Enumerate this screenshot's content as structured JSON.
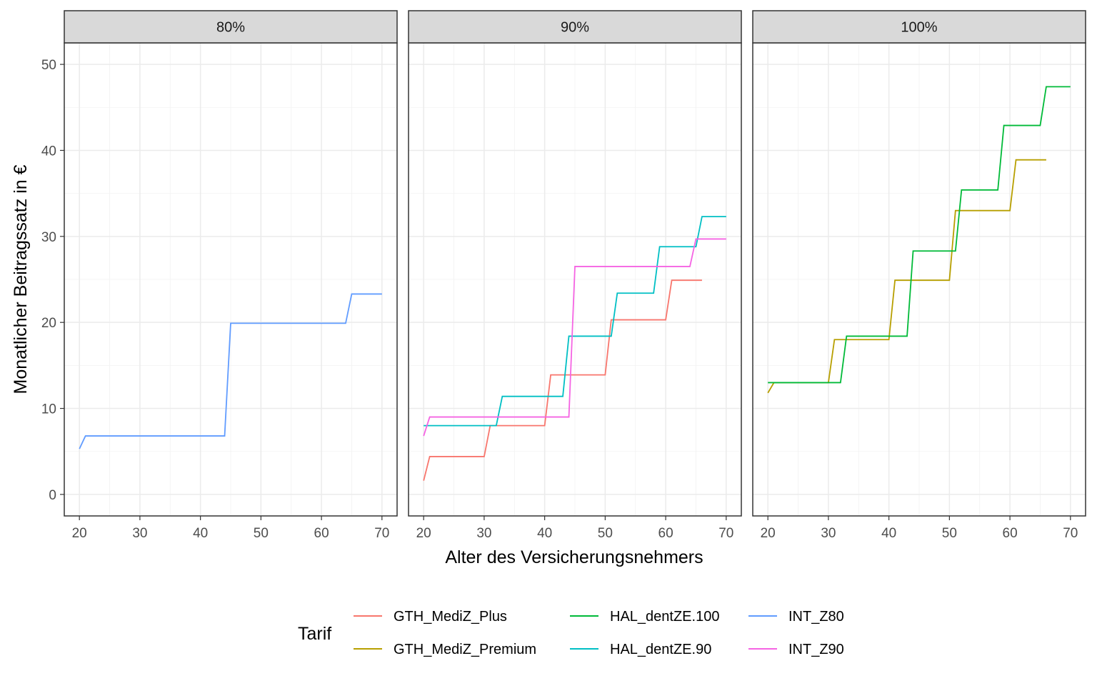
{
  "chart_data": {
    "type": "line",
    "facet_by": "Erstattungssatz",
    "panels": [
      "80%",
      "90%",
      "100%"
    ],
    "xlabel": "Alter des Versicherungsnehmers",
    "ylabel": "Monatlicher Beitragssatz in €",
    "xlim": [
      17.5,
      72.5
    ],
    "ylim": [
      -2.5,
      52.5
    ],
    "x_ticks": [
      20,
      30,
      40,
      50,
      60,
      70
    ],
    "y_ticks": [
      0,
      10,
      20,
      30,
      40,
      50
    ],
    "grid": true,
    "legend": {
      "title": "Tarif",
      "position": "bottom"
    },
    "series": [
      {
        "name": "GTH_MediZ_Plus",
        "panel": "90%",
        "color": "#F8766D",
        "x": [
          20,
          21,
          30,
          31,
          40,
          41,
          50,
          51,
          60,
          61,
          66
        ],
        "y": [
          1.6,
          4.4,
          4.4,
          8.0,
          8.0,
          13.9,
          13.9,
          20.3,
          20.3,
          24.9,
          24.9
        ]
      },
      {
        "name": "GTH_MediZ_Premium",
        "panel": "100%",
        "color": "#B79F00",
        "x": [
          20,
          21,
          30,
          31,
          40,
          41,
          50,
          51,
          60,
          61,
          66
        ],
        "y": [
          11.8,
          13.0,
          13.0,
          18.0,
          18.0,
          24.9,
          24.9,
          33.0,
          33.0,
          38.9,
          38.9
        ]
      },
      {
        "name": "HAL_dentZE.100",
        "panel": "100%",
        "color": "#00BA38",
        "x": [
          20,
          32,
          33,
          43,
          44,
          51,
          52,
          58,
          59,
          65,
          66,
          70
        ],
        "y": [
          13.0,
          13.0,
          18.4,
          18.4,
          28.3,
          28.3,
          35.4,
          35.4,
          42.9,
          42.9,
          47.4,
          47.4
        ]
      },
      {
        "name": "HAL_dentZE.90",
        "panel": "90%",
        "color": "#00BFC4",
        "x": [
          20,
          32,
          33,
          43,
          44,
          51,
          52,
          58,
          59,
          65,
          66,
          70
        ],
        "y": [
          8.0,
          8.0,
          11.4,
          11.4,
          18.4,
          18.4,
          23.4,
          23.4,
          28.8,
          28.8,
          32.3,
          32.3
        ]
      },
      {
        "name": "INT_Z80",
        "panel": "80%",
        "color": "#619CFF",
        "x": [
          20,
          21,
          44,
          45,
          64,
          65,
          70
        ],
        "y": [
          5.3,
          6.8,
          6.8,
          19.9,
          19.9,
          23.3,
          23.3
        ]
      },
      {
        "name": "INT_Z90",
        "panel": "90%",
        "color": "#F564E3",
        "x": [
          20,
          21,
          44,
          45,
          64,
          65,
          70
        ],
        "y": [
          6.8,
          9.0,
          9.0,
          26.5,
          26.5,
          29.7,
          29.7
        ]
      }
    ]
  }
}
